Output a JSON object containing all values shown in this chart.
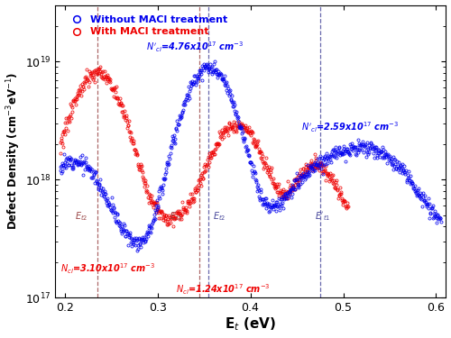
{
  "xlabel": "E$_t$ (eV)",
  "ylabel": "Defect Density (cm$^{-3}$eV$^{-1}$)",
  "xlim": [
    0.19,
    0.61
  ],
  "ylim_log": [
    17,
    19.48
  ],
  "legend_blue": "Without MACl treatment",
  "legend_red": "With MACl treatment",
  "blue_color": "#0000EE",
  "red_color": "#EE0000",
  "background_color": "#ffffff",
  "dashed_red": [
    0.235,
    0.345
  ],
  "dashed_blue": [
    0.355,
    0.475
  ]
}
